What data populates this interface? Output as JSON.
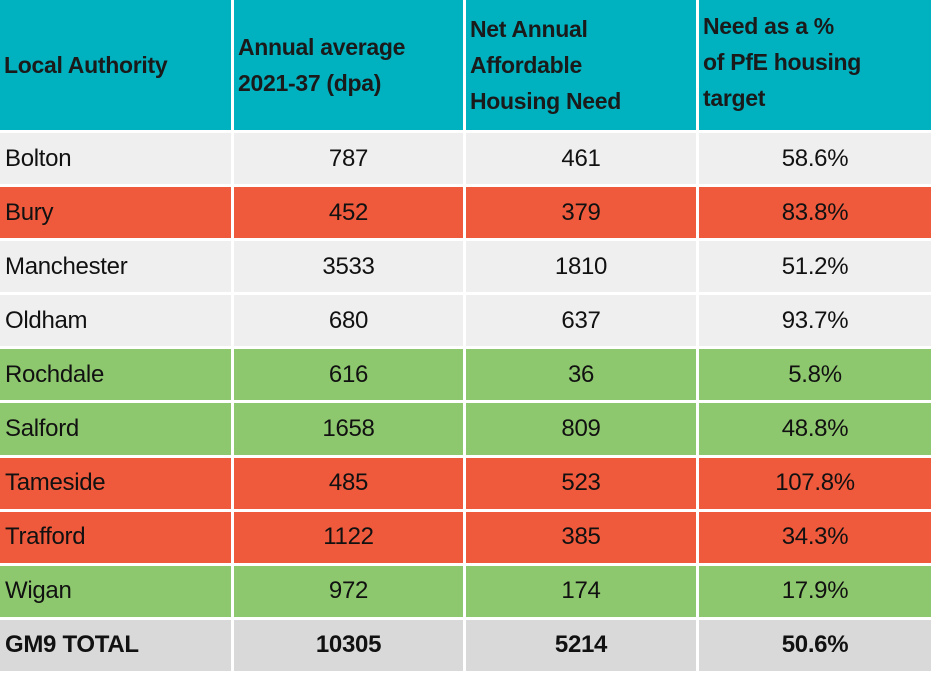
{
  "colors": {
    "header": "#00b2c0",
    "neutral": "#efefef",
    "red": "#f05a3c",
    "green": "#8ec86e",
    "total": "#d9d9d9"
  },
  "headers": {
    "local_authority": "Local Authority",
    "annual_average_line1": "Annual average",
    "annual_average_line2": "2021-37 (dpa)",
    "net_need_line1": "Net Annual Affordable",
    "net_need_line2": "Housing Need",
    "need_pct_line1": "Need as a %",
    "need_pct_line2": "of PfE housing",
    "need_pct_line3": "target"
  },
  "rows": [
    {
      "name": "Bolton",
      "annual": "787",
      "need": "461",
      "pct": "58.6%",
      "status": "neutral"
    },
    {
      "name": "Bury",
      "annual": "452",
      "need": "379",
      "pct": "83.8%",
      "status": "red"
    },
    {
      "name": "Manchester",
      "annual": "3533",
      "need": "1810",
      "pct": "51.2%",
      "status": "neutral"
    },
    {
      "name": "Oldham",
      "annual": "680",
      "need": "637",
      "pct": "93.7%",
      "status": "neutral"
    },
    {
      "name": "Rochdale",
      "annual": "616",
      "need": "36",
      "pct": "5.8%",
      "status": "green"
    },
    {
      "name": "Salford",
      "annual": "1658",
      "need": "809",
      "pct": "48.8%",
      "status": "green"
    },
    {
      "name": "Tameside",
      "annual": "485",
      "need": "523",
      "pct": "107.8%",
      "status": "red"
    },
    {
      "name": "Trafford",
      "annual": "1122",
      "need": "385",
      "pct": "34.3%",
      "status": "red"
    },
    {
      "name": "Wigan",
      "annual": "972",
      "need": "174",
      "pct": "17.9%",
      "status": "green"
    }
  ],
  "total": {
    "name": "GM9 TOTAL",
    "annual": "10305",
    "need": "5214",
    "pct": "50.6%"
  }
}
